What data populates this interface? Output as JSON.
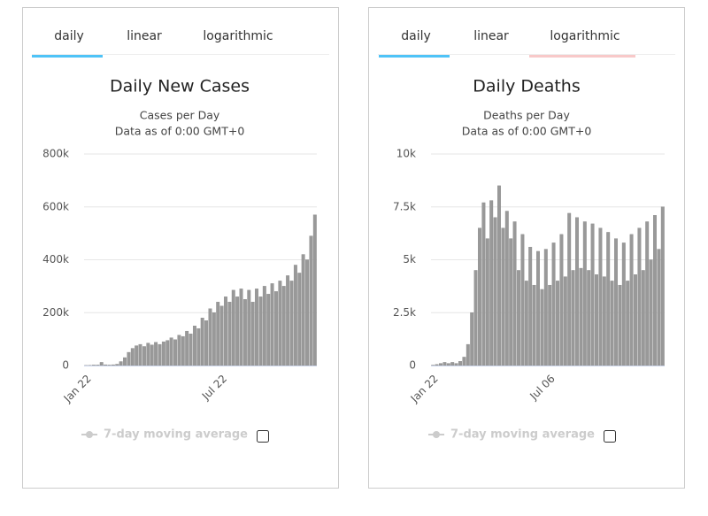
{
  "ui": {
    "panels": [
      {
        "tabs": [
          "daily",
          "linear",
          "logarithmic"
        ],
        "legend": "7-day moving average"
      },
      {
        "tabs": [
          "daily",
          "linear",
          "logarithmic"
        ],
        "legend": "7-day moving average"
      }
    ]
  },
  "chart_data": [
    {
      "type": "bar",
      "title": "Daily New Cases",
      "subtitle": "Cases per Day",
      "note": "Data as of 0:00 GMT+0",
      "categories": [
        "Jan 22",
        null,
        null,
        null,
        null,
        null,
        null,
        null,
        null,
        null,
        null,
        null,
        null,
        null,
        null,
        null,
        null,
        null,
        null,
        null,
        null,
        null,
        null,
        null,
        null,
        null,
        null,
        null,
        null,
        null,
        null,
        null,
        null,
        null,
        null,
        "Jul 22",
        null,
        null,
        null,
        null,
        null,
        null,
        null,
        null,
        null,
        null,
        null,
        null,
        null,
        null,
        null,
        null,
        null,
        null,
        null,
        null,
        null,
        null,
        null,
        null
      ],
      "values": [
        500,
        1000,
        2000,
        2000,
        12000,
        3000,
        2000,
        3000,
        5000,
        15000,
        30000,
        50000,
        65000,
        75000,
        80000,
        72000,
        85000,
        78000,
        88000,
        80000,
        90000,
        95000,
        105000,
        98000,
        115000,
        110000,
        130000,
        120000,
        150000,
        140000,
        180000,
        170000,
        215000,
        200000,
        240000,
        225000,
        260000,
        240000,
        285000,
        260000,
        290000,
        250000,
        285000,
        240000,
        290000,
        260000,
        300000,
        270000,
        310000,
        280000,
        320000,
        300000,
        340000,
        320000,
        380000,
        350000,
        420000,
        400000,
        490000,
        570000
      ],
      "color": "#999999",
      "ylim": [
        0,
        800000
      ],
      "yticks": [
        0,
        {
          "value": 200000,
          "label": "200k"
        },
        {
          "value": 400000,
          "label": "400k"
        },
        {
          "value": 600000,
          "label": "600k"
        },
        {
          "value": 800000,
          "label": "800k"
        }
      ],
      "grid": true
    },
    {
      "type": "bar",
      "title": "Daily Deaths",
      "subtitle": "Deaths per Day",
      "note": "Data as of 0:00 GMT+0",
      "categories": [
        "Jan 22",
        null,
        null,
        null,
        null,
        null,
        null,
        null,
        null,
        null,
        null,
        null,
        null,
        null,
        null,
        null,
        null,
        null,
        null,
        null,
        null,
        null,
        null,
        null,
        null,
        null,
        null,
        null,
        null,
        null,
        "Jul 06",
        null,
        null,
        null,
        null,
        null,
        null,
        null,
        null,
        null,
        null,
        null,
        null,
        null,
        null,
        null,
        null,
        null,
        null,
        null,
        null,
        null,
        null,
        null,
        null,
        null,
        null,
        null,
        null,
        null
      ],
      "values": [
        20,
        50,
        100,
        150,
        100,
        150,
        100,
        200,
        400,
        1000,
        2500,
        4500,
        6500,
        7700,
        6000,
        7800,
        7000,
        8500,
        6500,
        7300,
        6000,
        6800,
        4500,
        6200,
        4000,
        5600,
        3800,
        5400,
        3600,
        5500,
        3800,
        5800,
        4000,
        6200,
        4200,
        7200,
        4500,
        7000,
        4600,
        6800,
        4500,
        6700,
        4300,
        6500,
        4200,
        6300,
        4000,
        6000,
        3800,
        5800,
        4000,
        6200,
        4300,
        6500,
        4500,
        6800,
        5000,
        7100,
        5500,
        7500
      ],
      "color": "#999999",
      "ylim": [
        0,
        10000
      ],
      "yticks": [
        0,
        {
          "value": 2500,
          "label": "2.5k"
        },
        {
          "value": 5000,
          "label": "5k"
        },
        {
          "value": 7500,
          "label": "7.5k"
        },
        {
          "value": 10000,
          "label": "10k"
        }
      ],
      "grid": true
    }
  ]
}
